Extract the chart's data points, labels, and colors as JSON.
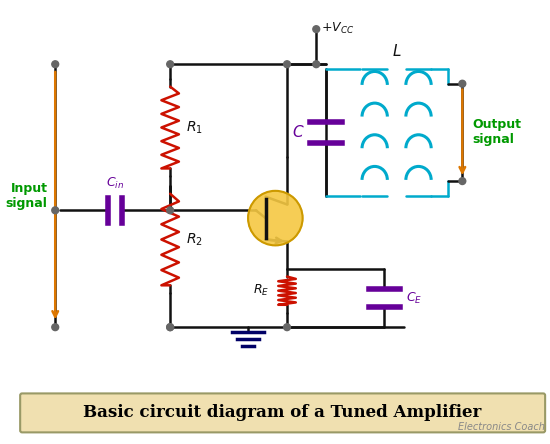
{
  "title": "Basic circuit diagram of a Tuned Amplifier",
  "watermark": "Electronics Coach",
  "input_label": "Input\nsignal",
  "output_label": "Output\nsignal",
  "bg_color": "#ffffff",
  "wire_color": "#111111",
  "resistor_color": "#cc1100",
  "capacitor_color": "#660099",
  "inductor_color": "#00aacc",
  "transistor_fill": "#f5c842",
  "transistor_edge": "#cc9900",
  "label_green": "#009900",
  "label_orange": "#dd7700",
  "dot_color": "#666666",
  "title_bg": "#f0e0b0",
  "title_border": "#999966",
  "gnd_color": "#000066"
}
